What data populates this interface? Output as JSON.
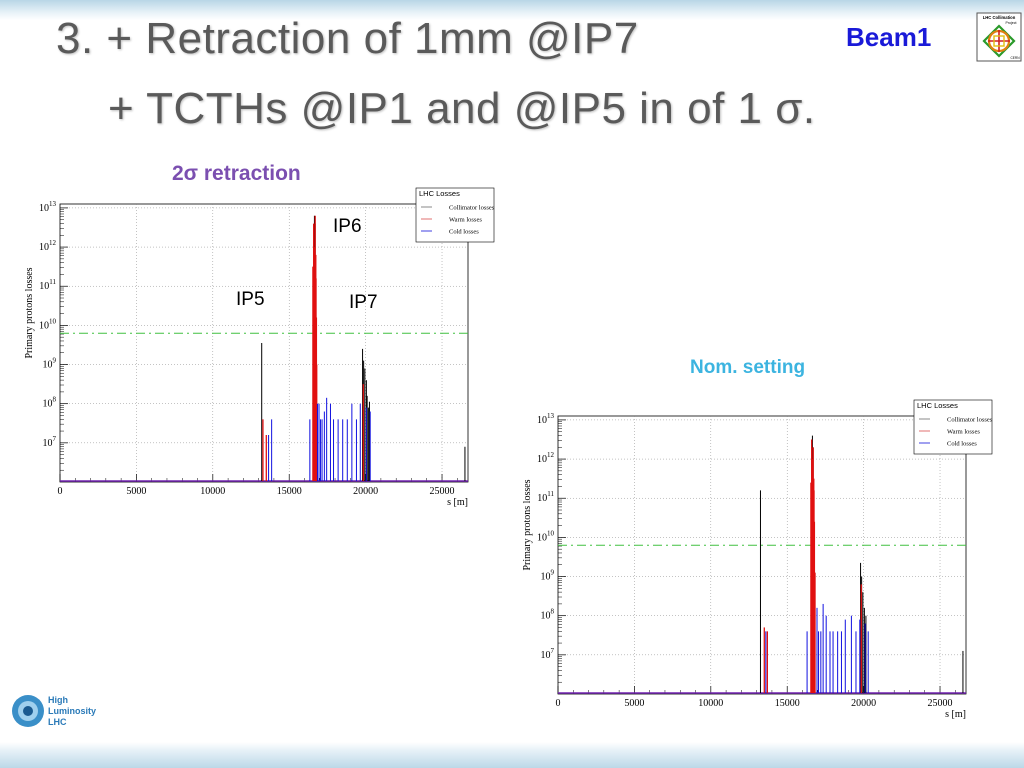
{
  "slide": {
    "title_line1": "3. + Retraction of 1mm @IP7",
    "title_line2": "+ TCTHs @IP1 and @IP5 in of 1 σ.",
    "beam_tag": "Beam1",
    "caption_retraction": "2σ retraction",
    "caption_nominal": "Nom. setting",
    "ip_labels": [
      "IP6",
      "IP5",
      "IP7"
    ],
    "logo_collimation": "LHC Collimation Project",
    "logo_hl": [
      "High",
      "Luminosity",
      "LHC"
    ]
  },
  "colors": {
    "title": "#5a5a5a",
    "beam": "#1a1ad8",
    "retraction_caption": "#7b4fb0",
    "nominal_caption": "#3cb4e0",
    "collimator": "#000000",
    "warm": "#e01010",
    "cold": "#1010e0",
    "threshold": "#40c040",
    "baseline": "#7020b0"
  },
  "chart_data": [
    {
      "type": "bar",
      "name": "2σ retraction",
      "xlabel": "s [m]",
      "ylabel": "Primary protons losses",
      "xlim": [
        0,
        26700
      ],
      "ylim_log10": [
        6,
        13.1
      ],
      "y_scale": "log",
      "x_ticks": [
        0,
        5000,
        10000,
        15000,
        20000,
        25000
      ],
      "y_ticks": [
        "10^7",
        "10^8",
        "10^9",
        "10^10",
        "10^11",
        "10^12",
        "10^13"
      ],
      "grid": true,
      "legend": {
        "title": "LHC Losses",
        "position": "top-right",
        "entries": [
          "Collimator losses",
          "Warm losses",
          "Cold losses"
        ]
      },
      "threshold_log10": 9.8,
      "series": [
        {
          "name": "Collimator losses",
          "color": "black",
          "spikes": [
            [
              13200,
              9.55
            ],
            [
              16650,
              12.8
            ],
            [
              16700,
              12.6
            ],
            [
              19800,
              9.4
            ],
            [
              19870,
              9.1
            ],
            [
              19950,
              8.9
            ],
            [
              20050,
              8.6
            ],
            [
              20100,
              8.2
            ],
            [
              20180,
              7.9
            ],
            [
              20250,
              8.05
            ],
            [
              26500,
              6.9
            ]
          ]
        },
        {
          "name": "Warm losses",
          "color": "red",
          "spikes": [
            [
              13280,
              7.6
            ],
            [
              13500,
              7.2
            ],
            [
              16550,
              11.5
            ],
            [
              16600,
              12.6
            ],
            [
              16620,
              12.0
            ],
            [
              16660,
              11.2
            ],
            [
              16700,
              12.8
            ],
            [
              16740,
              11.8
            ],
            [
              16780,
              10.2
            ],
            [
              16800,
              9.0
            ],
            [
              19850,
              8.5
            ]
          ]
        },
        {
          "name": "Cold losses",
          "color": "blue",
          "spikes": [
            [
              13650,
              7.2
            ],
            [
              13850,
              7.6
            ],
            [
              16350,
              7.6
            ],
            [
              16850,
              8.0
            ],
            [
              16950,
              8.0
            ],
            [
              17050,
              7.6
            ],
            [
              17150,
              7.6
            ],
            [
              17300,
              7.8
            ],
            [
              17450,
              8.15
            ],
            [
              17700,
              8.0
            ],
            [
              17900,
              7.6
            ],
            [
              18200,
              7.6
            ],
            [
              18500,
              7.6
            ],
            [
              18800,
              7.6
            ],
            [
              19100,
              8.0
            ],
            [
              19400,
              7.6
            ],
            [
              19650,
              8.0
            ],
            [
              20050,
              7.9
            ],
            [
              20300,
              7.8
            ]
          ]
        }
      ]
    },
    {
      "type": "bar",
      "name": "Nom. setting",
      "xlabel": "s [m]",
      "ylabel": "Primary protons losses",
      "xlim": [
        0,
        26700
      ],
      "ylim_log10": [
        6,
        13.1
      ],
      "y_scale": "log",
      "x_ticks": [
        0,
        5000,
        10000,
        15000,
        20000,
        25000
      ],
      "y_ticks": [
        "10^7",
        "10^8",
        "10^9",
        "10^10",
        "10^11",
        "10^12",
        "10^13"
      ],
      "grid": true,
      "legend": {
        "title": "LHC Losses",
        "position": "top-right",
        "entries": [
          "Collimator losses",
          "Warm losses",
          "Cold losses"
        ]
      },
      "threshold_log10": 9.8,
      "series": [
        {
          "name": "Collimator losses",
          "color": "black",
          "spikes": [
            [
              13250,
              11.2
            ],
            [
              16650,
              12.6
            ],
            [
              16700,
              12.3
            ],
            [
              19800,
              9.35
            ],
            [
              19870,
              9.0
            ],
            [
              19950,
              8.6
            ],
            [
              20050,
              8.2
            ],
            [
              20150,
              8.0
            ],
            [
              26500,
              7.1
            ]
          ]
        },
        {
          "name": "Warm losses",
          "color": "red",
          "spikes": [
            [
              13500,
              7.7
            ],
            [
              13700,
              7.6
            ],
            [
              16550,
              11.4
            ],
            [
              16600,
              12.5
            ],
            [
              16640,
              12.0
            ],
            [
              16700,
              12.3
            ],
            [
              16740,
              11.5
            ],
            [
              16780,
              10.4
            ],
            [
              16820,
              9.1
            ],
            [
              19850,
              8.8
            ]
          ]
        },
        {
          "name": "Cold losses",
          "color": "blue",
          "spikes": [
            [
              13600,
              7.6
            ],
            [
              16300,
              7.6
            ],
            [
              16950,
              8.2
            ],
            [
              17050,
              7.6
            ],
            [
              17200,
              7.6
            ],
            [
              17350,
              8.3
            ],
            [
              17550,
              8.0
            ],
            [
              17800,
              7.6
            ],
            [
              18000,
              7.6
            ],
            [
              18300,
              7.6
            ],
            [
              18550,
              7.6
            ],
            [
              18800,
              7.9
            ],
            [
              19200,
              8.0
            ],
            [
              19500,
              7.6
            ],
            [
              19750,
              7.9
            ],
            [
              20100,
              7.8
            ],
            [
              20300,
              7.6
            ]
          ]
        }
      ]
    }
  ]
}
